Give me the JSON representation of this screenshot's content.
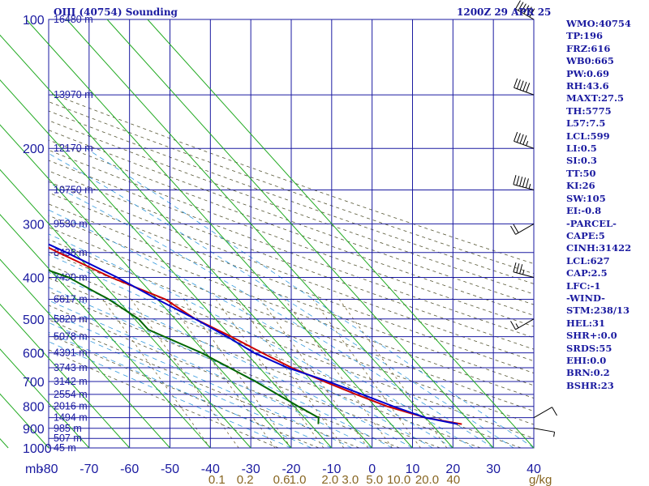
{
  "header": {
    "title": "OIII (40754) Sounding",
    "time": "1200Z 29 APR 25"
  },
  "indices": [
    "WMO:40754",
    "TP:196",
    "FRZ:616",
    "WB0:665",
    "PW:0.69",
    "RH:43.6",
    "MAXT:27.5",
    "TH:5775",
    "L57:7.5",
    "LCL:599",
    "LI:0.5",
    "SI:0.3",
    "TT:50",
    "KI:26",
    "SW:105",
    "EI:-0.8",
    "-PARCEL-",
    "CAPE:5",
    "CINH:31422",
    "LCL:627",
    "CAP:2.5",
    "LFC:-1",
    "-WIND-",
    "STM:238/13",
    "HEL:31",
    "SHR+:0.0",
    "SRDS:55",
    "EHI:0.0",
    "BRN:0.2",
    "BSHR:23"
  ],
  "chart_data": {
    "type": "line",
    "title": "OIII (40754) Sounding",
    "x_axis": {
      "unit_label": "mb",
      "range": [
        -80,
        40
      ],
      "ticks": [
        "-80",
        "-70",
        "-60",
        "-50",
        "-40",
        "-30",
        "-20",
        "-10",
        "0",
        "10",
        "20",
        "30",
        "40"
      ]
    },
    "y_axis": {
      "scale": "log-pressure",
      "range_mb": [
        1000,
        100
      ],
      "ticks": [
        "100",
        "200",
        "300",
        "400",
        "500",
        "600",
        "700",
        "800",
        "900",
        "1000"
      ]
    },
    "height_labels": [
      {
        "p": 100,
        "label": "16480 m"
      },
      {
        "p": 150,
        "label": "13970 m"
      },
      {
        "p": 200,
        "label": "12170 m"
      },
      {
        "p": 250,
        "label": "10750 m"
      },
      {
        "p": 300,
        "label": "9530 m"
      },
      {
        "p": 350,
        "label": "8438 m"
      },
      {
        "p": 400,
        "label": "7490 m"
      },
      {
        "p": 450,
        "label": "6617 m"
      },
      {
        "p": 500,
        "label": "5820 m"
      },
      {
        "p": 550,
        "label": "5078 m"
      },
      {
        "p": 600,
        "label": "4391 m"
      },
      {
        "p": 650,
        "label": "3743 m"
      },
      {
        "p": 700,
        "label": "3142 m"
      },
      {
        "p": 750,
        "label": "2554 m"
      },
      {
        "p": 800,
        "label": "2016 m"
      },
      {
        "p": 850,
        "label": "1494 m"
      },
      {
        "p": 900,
        "label": "985 m"
      },
      {
        "p": 950,
        "label": "507 m"
      },
      {
        "p": 1000,
        "label": "45 m"
      }
    ],
    "mixing_ratio_labels": [
      {
        "t": -40,
        "label": "0.1"
      },
      {
        "t": -33,
        "label": "0.2"
      },
      {
        "t": -24,
        "label": "0.6"
      },
      {
        "t": -20,
        "label": "1.0"
      },
      {
        "t": -12,
        "label": "2.0"
      },
      {
        "t": -7,
        "label": "3.0"
      },
      {
        "t": -1,
        "label": "5.0"
      },
      {
        "t": 5,
        "label": "10.0"
      },
      {
        "t": 12,
        "label": "20.0"
      },
      {
        "t": 18.5,
        "label": "40"
      }
    ],
    "mixing_ratio_unit": "g/kg",
    "series": [
      {
        "name": "",
        "color": "#cc0000",
        "points": [
          [
            100,
            -64.5
          ],
          [
            120,
            -66
          ],
          [
            150,
            -65
          ],
          [
            180,
            -65
          ],
          [
            200,
            -63
          ],
          [
            250,
            -53
          ],
          [
            300,
            -42
          ],
          [
            350,
            -34
          ],
          [
            400,
            -26.5
          ],
          [
            450,
            -18
          ],
          [
            500,
            -15
          ],
          [
            550,
            -10
          ],
          [
            600,
            -6
          ],
          [
            650,
            -2
          ],
          [
            700,
            3
          ],
          [
            750,
            8
          ],
          [
            800,
            13
          ],
          [
            850,
            20
          ],
          [
            880,
            27.5
          ]
        ]
      },
      {
        "name": "",
        "color": "#006600",
        "points": [
          [
            100,
            -77
          ],
          [
            130,
            -74
          ],
          [
            150,
            -74
          ],
          [
            175,
            -72.5
          ],
          [
            185,
            -71.5
          ],
          [
            200,
            -72
          ],
          [
            250,
            -70
          ],
          [
            270,
            -69
          ],
          [
            300,
            -60
          ],
          [
            350,
            -49
          ],
          [
            400,
            -37
          ],
          [
            430,
            -34
          ],
          [
            450,
            -32
          ],
          [
            500,
            -29
          ],
          [
            530,
            -29
          ],
          [
            600,
            -21
          ],
          [
            700,
            -14
          ],
          [
            800,
            -9
          ],
          [
            850,
            -6.5
          ],
          [
            880,
            -8
          ]
        ]
      },
      {
        "name": "",
        "color": "#0000cc",
        "points": [
          [
            880,
            26.5
          ],
          [
            850,
            20
          ],
          [
            800,
            14.5
          ],
          [
            750,
            9.5
          ],
          [
            700,
            4
          ],
          [
            650,
            -3
          ],
          [
            600,
            -8
          ],
          [
            550,
            -11
          ],
          [
            500,
            -15
          ],
          [
            450,
            -20
          ],
          [
            400,
            -25
          ],
          [
            350,
            -32
          ],
          [
            300,
            -41
          ],
          [
            250,
            -52
          ],
          [
            200,
            -64
          ],
          [
            170,
            -75
          ],
          [
            160,
            -78
          ]
        ]
      }
    ],
    "wind_barbs": [
      {
        "p": 100,
        "dir": 300,
        "speed": 60
      },
      {
        "p": 150,
        "dir": 290,
        "speed": 50
      },
      {
        "p": 200,
        "dir": 290,
        "speed": 45
      },
      {
        "p": 250,
        "dir": 285,
        "speed": 55
      },
      {
        "p": 300,
        "dir": 240,
        "speed": 20
      },
      {
        "p": 400,
        "dir": 285,
        "speed": 35
      },
      {
        "p": 500,
        "dir": 240,
        "speed": 15
      },
      {
        "p": 850,
        "dir": 60,
        "speed": 10
      },
      {
        "p": 900,
        "dir": 100,
        "speed": 5
      }
    ],
    "grid": true
  }
}
